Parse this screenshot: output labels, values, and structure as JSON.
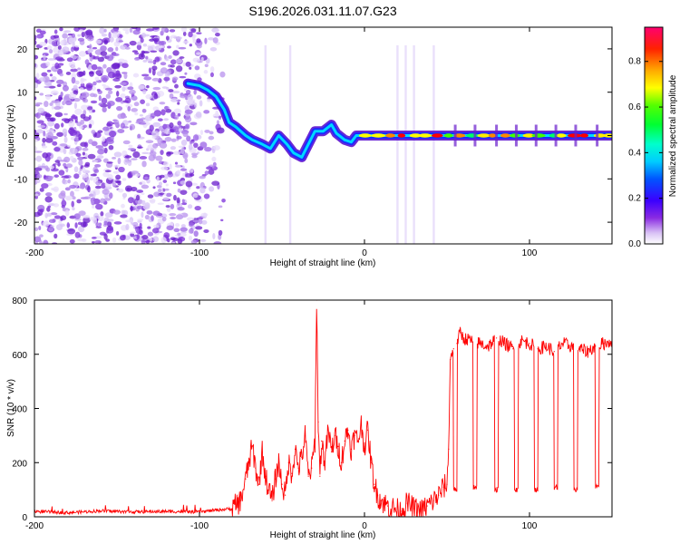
{
  "title": "S196.2026.031.11.07.G23",
  "chart_data": [
    {
      "type": "heatmap",
      "title": "S196.2026.031.11.07.G23",
      "xlabel": "Height of straight line (km)",
      "ylabel": "Frequency (Hz)",
      "xlim": [
        -200,
        150
      ],
      "ylim": [
        -25,
        25
      ],
      "x_ticks": [
        -200,
        -100,
        0,
        100
      ],
      "y_ticks": [
        -20,
        -10,
        0,
        10,
        20
      ],
      "colorbar": {
        "label": "Normalized spectral amplitude",
        "range": [
          0,
          0.95
        ],
        "ticks": [
          0.0,
          0.2,
          0.4,
          0.6,
          0.8
        ],
        "tick_labels": [
          "0.0",
          "0.2",
          "0.4",
          "0.6",
          "0.8"
        ],
        "colormap": [
          "#ffffff",
          "#7b1fe0",
          "#0000ff",
          "#00ffff",
          "#00ff00",
          "#ffff00",
          "#ff8800",
          "#ff0000",
          "#ff0080"
        ]
      },
      "ridge_line": {
        "description": "dominant frequency track",
        "x": [
          -107,
          -100,
          -95,
          -90,
          -85,
          -82,
          -78,
          -72,
          -68,
          -62,
          -57,
          -52,
          -47,
          -43,
          -38,
          -34,
          -30,
          -25,
          -20,
          -17,
          -12,
          -8,
          -5,
          0,
          50,
          150
        ],
        "y": [
          12,
          11.5,
          10.5,
          9,
          6,
          3,
          2,
          0,
          -1,
          -2,
          -3,
          0,
          -2,
          -4,
          -5,
          -2,
          1,
          1,
          2.5,
          0.5,
          -1,
          -1.5,
          0,
          0,
          0,
          0
        ]
      },
      "noise_region": {
        "x_range": [
          -200,
          -85
        ],
        "y_range": [
          -25,
          25
        ]
      }
    },
    {
      "type": "line",
      "xlabel": "Height of straight line (km)",
      "ylabel": "SNR (10 * v/v)",
      "xlim": [
        -200,
        150
      ],
      "ylim": [
        0,
        800
      ],
      "x_ticks": [
        -200,
        -100,
        0,
        100
      ],
      "y_ticks": [
        0,
        200,
        400,
        600,
        800
      ],
      "color": "#ff0000",
      "series": [
        {
          "name": "SNR",
          "x": [
            -200,
            -180,
            -160,
            -140,
            -120,
            -100,
            -90,
            -80,
            -75,
            -72,
            -70,
            -68,
            -66,
            -64,
            -62,
            -60,
            -58,
            -56,
            -54,
            -52,
            -50,
            -48,
            -46,
            -44,
            -42,
            -40,
            -38,
            -36,
            -34,
            -32,
            -30,
            -29,
            -28,
            -27,
            -26,
            -24,
            -22,
            -20,
            -18,
            -16,
            -14,
            -12,
            -10,
            -8,
            -6,
            -4,
            -2,
            0,
            2,
            4,
            6,
            8,
            10,
            14,
            18,
            22,
            26,
            30,
            34,
            38,
            42,
            45,
            48,
            50,
            51,
            52,
            53,
            54,
            56,
            58,
            60,
            65,
            70,
            75,
            80,
            85,
            90,
            95,
            100,
            105,
            110,
            115,
            120,
            125,
            130,
            135,
            140,
            145,
            150
          ],
          "y": [
            20,
            15,
            22,
            18,
            20,
            18,
            25,
            30,
            60,
            140,
            200,
            260,
            180,
            120,
            240,
            150,
            100,
            60,
            140,
            200,
            120,
            80,
            200,
            160,
            250,
            180,
            220,
            300,
            150,
            180,
            280,
            800,
            350,
            150,
            280,
            200,
            320,
            240,
            300,
            260,
            200,
            280,
            320,
            250,
            300,
            280,
            340,
            260,
            320,
            200,
            120,
            80,
            60,
            40,
            30,
            20,
            50,
            30,
            20,
            40,
            60,
            80,
            110,
            120,
            250,
            580,
            600,
            620,
            640,
            680,
            660,
            650,
            640,
            630,
            660,
            640,
            620,
            650,
            640,
            620,
            630,
            610,
            640,
            630,
            620,
            610,
            630,
            640,
            650
          ]
        }
      ],
      "dropouts": {
        "description": "periodic SNR drops",
        "x": [
          55,
          67,
          80,
          92,
          104,
          116,
          128,
          141
        ],
        "y": [
          100,
          110,
          100,
          100,
          100,
          110,
          100,
          110
        ]
      }
    }
  ]
}
